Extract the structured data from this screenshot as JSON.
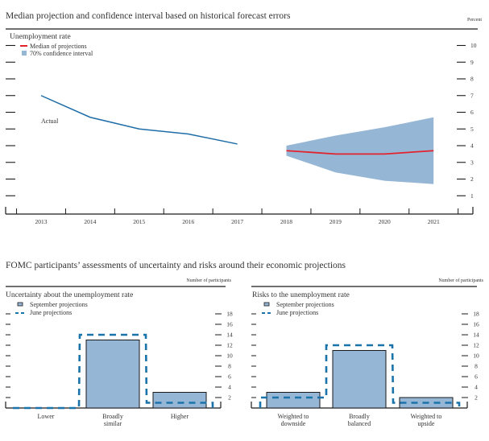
{
  "colors": {
    "actual_line": "#1f6ea8",
    "band": "#96b6d6",
    "median": "#e2232c",
    "bar_fill": "#96b6d6",
    "bar_stroke": "#1a1a1a",
    "june_dash": "#1a73a9",
    "axis": "#1a1a1a"
  },
  "chart_data": [
    {
      "type": "area",
      "title": "Median projection and confidence interval based on historical forecast errors",
      "unit_label": "Percent",
      "subtitle": "Unemployment rate",
      "legend": {
        "placement": "top-left",
        "items": [
          {
            "label": "Median of projections",
            "symbol": "red-line"
          },
          {
            "label": "70% confidence interval",
            "symbol": "blue-square"
          }
        ]
      },
      "annotation": "Actual",
      "x": [
        "2013",
        "2014",
        "2015",
        "2016",
        "2017",
        "2018",
        "2019",
        "2020",
        "2021"
      ],
      "ylim": [
        0,
        10.5
      ],
      "yticks": [
        1,
        2,
        3,
        4,
        5,
        6,
        7,
        8,
        9,
        10
      ],
      "series": [
        {
          "name": "Actual",
          "x": [
            "2013",
            "2014",
            "2015",
            "2016",
            "2017"
          ],
          "values": [
            7.0,
            5.7,
            5.0,
            4.7,
            4.1
          ]
        },
        {
          "name": "Median of projections",
          "x": [
            "2018",
            "2019",
            "2020",
            "2021"
          ],
          "values": [
            3.7,
            3.5,
            3.5,
            3.7
          ]
        },
        {
          "name": "70% confidence interval upper",
          "x": [
            "2018",
            "2019",
            "2020",
            "2021"
          ],
          "values": [
            4.0,
            4.6,
            5.1,
            5.7
          ]
        },
        {
          "name": "70% confidence interval lower",
          "x": [
            "2018",
            "2019",
            "2020",
            "2021"
          ],
          "values": [
            3.4,
            2.4,
            1.9,
            1.7
          ]
        }
      ],
      "grid": false
    },
    {
      "type": "bar",
      "title": "Uncertainty about the unemployment rate",
      "unit_label": "Number of participants",
      "categories": [
        "Lower",
        "Broadly similar",
        "Higher"
      ],
      "category_lines": [
        [
          "Lower"
        ],
        [
          "Broadly",
          "similar"
        ],
        [
          "Higher"
        ]
      ],
      "series": [
        {
          "name": "September projections",
          "values": [
            0,
            13,
            3
          ]
        },
        {
          "name": "June projections",
          "values": [
            0,
            14,
            1
          ]
        }
      ],
      "ylim": [
        0,
        19
      ],
      "yticks": [
        2,
        4,
        6,
        8,
        10,
        12,
        14,
        16,
        18
      ],
      "legend": {
        "placement": "top-left"
      }
    },
    {
      "type": "bar",
      "title": "Risks to the unemployment rate",
      "unit_label": "Number of participants",
      "categories": [
        "Weighted to downside",
        "Broadly balanced",
        "Weighted to upside"
      ],
      "category_lines": [
        [
          "Weighted to",
          "downside"
        ],
        [
          "Broadly",
          "balanced"
        ],
        [
          "Weighted to",
          "upside"
        ]
      ],
      "series": [
        {
          "name": "September projections",
          "values": [
            3,
            11,
            2
          ]
        },
        {
          "name": "June projections",
          "values": [
            2,
            12,
            1
          ]
        }
      ],
      "ylim": [
        0,
        19
      ],
      "yticks": [
        2,
        4,
        6,
        8,
        10,
        12,
        14,
        16,
        18
      ],
      "legend": {
        "placement": "top-left"
      }
    }
  ],
  "section2_title": "FOMC participants’ assessments of uncertainty and risks around their economic projections"
}
